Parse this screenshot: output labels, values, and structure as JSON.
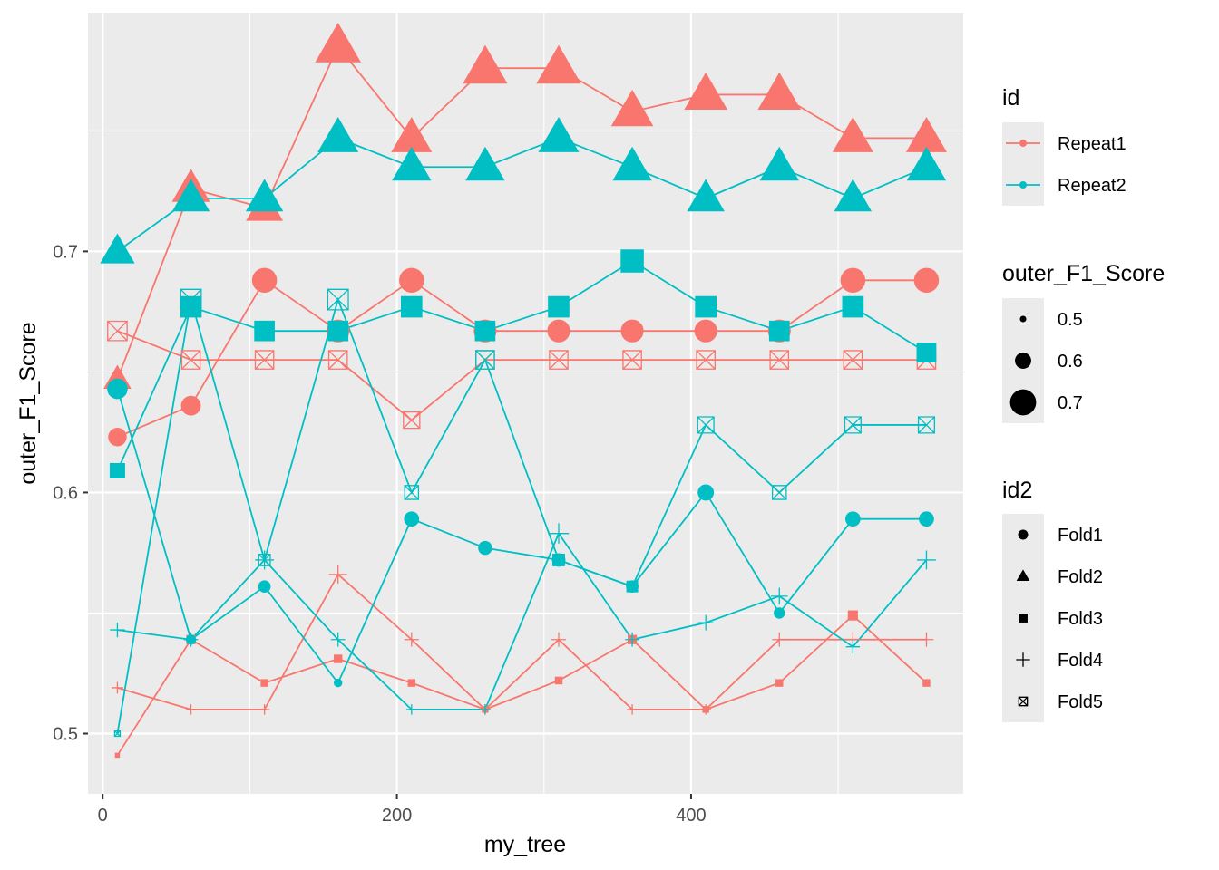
{
  "chart_data": {
    "type": "line",
    "xlabel": "my_tree",
    "ylabel": "outer_F1_Score",
    "xlim": [
      -10,
      585
    ],
    "ylim": [
      0.475,
      0.799
    ],
    "x_ticks": [
      0,
      200,
      400
    ],
    "y_ticks": [
      0.5,
      0.6,
      0.7
    ],
    "x_tick_labels": [
      "0",
      "200",
      "400"
    ],
    "y_tick_labels": [
      "0.5",
      "0.6",
      "0.7"
    ],
    "grid": true,
    "legend_placement": "right",
    "colors": {
      "Repeat1": "#F8766D",
      "Repeat2": "#00BFC4"
    },
    "shapes": {
      "Fold1": "circle",
      "Fold2": "triangle",
      "Fold3": "square",
      "Fold4": "plus",
      "Fold5": "boxed-x"
    },
    "size_range": [
      0.49,
      0.785
    ],
    "x": [
      10,
      60,
      110,
      160,
      210,
      260,
      310,
      360,
      410,
      460,
      510,
      560
    ],
    "series": [
      {
        "id": "Repeat1",
        "id2": "Fold1",
        "values": [
          0.623,
          0.636,
          0.688,
          0.667,
          0.688,
          0.667,
          0.667,
          0.667,
          0.667,
          0.667,
          0.688,
          0.688
        ]
      },
      {
        "id": "Repeat1",
        "id2": "Fold2",
        "values": [
          0.647,
          0.726,
          0.718,
          0.785,
          0.747,
          0.776,
          0.776,
          0.758,
          0.765,
          0.765,
          0.747,
          0.747
        ]
      },
      {
        "id": "Repeat1",
        "id2": "Fold3",
        "values": [
          0.491,
          0.539,
          0.521,
          0.531,
          0.521,
          0.51,
          0.522,
          0.539,
          0.51,
          0.521,
          0.549,
          0.521
        ]
      },
      {
        "id": "Repeat1",
        "id2": "Fold4",
        "values": [
          0.519,
          0.51,
          0.51,
          0.566,
          0.539,
          0.51,
          0.539,
          0.51,
          0.51,
          0.539,
          0.539,
          0.539
        ]
      },
      {
        "id": "Repeat1",
        "id2": "Fold5",
        "values": [
          0.667,
          0.655,
          0.655,
          0.655,
          0.63,
          0.655,
          0.655,
          0.655,
          0.655,
          0.655,
          0.655,
          0.655
        ]
      },
      {
        "id": "Repeat2",
        "id2": "Fold1",
        "values": [
          0.643,
          0.539,
          0.561,
          0.521,
          0.589,
          0.577,
          0.572,
          0.561,
          0.6,
          0.55,
          0.589,
          0.589
        ]
      },
      {
        "id": "Repeat2",
        "id2": "Fold2",
        "values": [
          0.7,
          0.722,
          0.722,
          0.747,
          0.735,
          0.735,
          0.747,
          0.735,
          0.722,
          0.735,
          0.722,
          0.735
        ]
      },
      {
        "id": "Repeat2",
        "id2": "Fold3",
        "values": [
          0.609,
          0.677,
          0.667,
          0.667,
          0.677,
          0.667,
          0.677,
          0.696,
          0.677,
          0.667,
          0.677,
          0.658
        ]
      },
      {
        "id": "Repeat2",
        "id2": "Fold4",
        "values": [
          0.543,
          0.539,
          0.572,
          0.539,
          0.51,
          0.51,
          0.583,
          0.539,
          0.546,
          0.557,
          0.536,
          0.572
        ]
      },
      {
        "id": "Repeat2",
        "id2": "Fold5",
        "values": [
          0.5,
          0.68,
          0.572,
          0.68,
          0.6,
          0.655,
          0.572,
          0.561,
          0.628,
          0.6,
          0.628,
          0.628
        ]
      }
    ],
    "legends": [
      {
        "title": "id",
        "items": [
          {
            "label": "Repeat1",
            "color": "#F8766D"
          },
          {
            "label": "Repeat2",
            "color": "#00BFC4"
          }
        ]
      },
      {
        "title": "outer_F1_Score",
        "items": [
          {
            "label": "0.5",
            "value": 0.5
          },
          {
            "label": "0.6",
            "value": 0.6
          },
          {
            "label": "0.7",
            "value": 0.7
          }
        ]
      },
      {
        "title": "id2",
        "items": [
          {
            "label": "Fold1",
            "shape": "circle"
          },
          {
            "label": "Fold2",
            "shape": "triangle"
          },
          {
            "label": "Fold3",
            "shape": "square"
          },
          {
            "label": "Fold4",
            "shape": "plus"
          },
          {
            "label": "Fold5",
            "shape": "boxed-x"
          }
        ]
      }
    ]
  }
}
